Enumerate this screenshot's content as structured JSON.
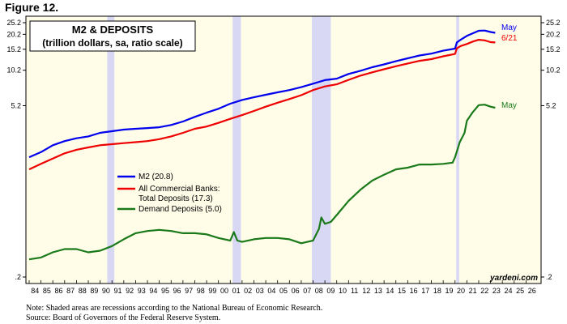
{
  "figure_label": "Figure 12.",
  "chart_data": {
    "type": "line",
    "title": "M2 & DEPOSITS",
    "subtitle": "(trillion dollars, sa, ratio scale)",
    "y_scale": "log",
    "ylim": [
      0.2,
      25.2
    ],
    "y_ticks": [
      {
        "value": 25.2,
        "label": "25.2"
      },
      {
        "value": 20.2,
        "label": "20.2"
      },
      {
        "value": 15.2,
        "label": "15.2"
      },
      {
        "value": 10.2,
        "label": "10.2"
      },
      {
        "value": 5.2,
        "label": "5.2"
      },
      {
        "value": 0.2,
        "label": ".2"
      }
    ],
    "xlim": [
      1984,
      2027
    ],
    "x_tick_labels": [
      "84",
      "85",
      "86",
      "87",
      "88",
      "89",
      "90",
      "91",
      "92",
      "93",
      "94",
      "95",
      "96",
      "97",
      "98",
      "99",
      "00",
      "01",
      "02",
      "03",
      "04",
      "05",
      "06",
      "07",
      "08",
      "09",
      "10",
      "11",
      "12",
      "13",
      "14",
      "15",
      "16",
      "17",
      "18",
      "19",
      "20",
      "21",
      "22",
      "23",
      "24",
      "25",
      "26"
    ],
    "recessions": [
      [
        1990.6,
        1991.2
      ],
      [
        2001.2,
        2001.9
      ],
      [
        2007.9,
        2009.5
      ],
      [
        2020.1,
        2020.35
      ]
    ],
    "series": [
      {
        "name": "M2 (20.8)",
        "color": "#0000ee",
        "end_label": "May",
        "points": [
          [
            1984,
            1.95
          ],
          [
            1985,
            2.15
          ],
          [
            1986,
            2.45
          ],
          [
            1987,
            2.65
          ],
          [
            1988,
            2.8
          ],
          [
            1989,
            2.9
          ],
          [
            1990,
            3.1
          ],
          [
            1991,
            3.2
          ],
          [
            1992,
            3.3
          ],
          [
            1993,
            3.35
          ],
          [
            1994,
            3.4
          ],
          [
            1995,
            3.45
          ],
          [
            1996,
            3.6
          ],
          [
            1997,
            3.85
          ],
          [
            1998,
            4.2
          ],
          [
            1999,
            4.55
          ],
          [
            2000,
            4.9
          ],
          [
            2001,
            5.4
          ],
          [
            2002,
            5.8
          ],
          [
            2003,
            6.1
          ],
          [
            2004,
            6.4
          ],
          [
            2005,
            6.7
          ],
          [
            2006,
            7.0
          ],
          [
            2007,
            7.4
          ],
          [
            2008,
            7.9
          ],
          [
            2009,
            8.45
          ],
          [
            2010,
            8.7
          ],
          [
            2011,
            9.5
          ],
          [
            2012,
            10.1
          ],
          [
            2013,
            10.8
          ],
          [
            2014,
            11.4
          ],
          [
            2015,
            12.1
          ],
          [
            2016,
            12.8
          ],
          [
            2017,
            13.5
          ],
          [
            2018,
            14.0
          ],
          [
            2019,
            14.8
          ],
          [
            2020.0,
            15.4
          ],
          [
            2020.15,
            17.3
          ],
          [
            2020.5,
            18.3
          ],
          [
            2021,
            19.6
          ],
          [
            2021.5,
            20.6
          ],
          [
            2022,
            21.6
          ],
          [
            2022.5,
            21.7
          ],
          [
            2023,
            21.1
          ],
          [
            2023.4,
            20.8
          ]
        ]
      },
      {
        "name": "All Commercial Banks: Total Deposits (17.3)",
        "color": "#ee0000",
        "end_label": "6/21",
        "points": [
          [
            1984,
            1.55
          ],
          [
            1985,
            1.72
          ],
          [
            1986,
            1.9
          ],
          [
            1987,
            2.1
          ],
          [
            1988,
            2.25
          ],
          [
            1989,
            2.35
          ],
          [
            1990,
            2.45
          ],
          [
            1991,
            2.5
          ],
          [
            1992,
            2.55
          ],
          [
            1993,
            2.6
          ],
          [
            1994,
            2.65
          ],
          [
            1995,
            2.75
          ],
          [
            1996,
            2.9
          ],
          [
            1997,
            3.1
          ],
          [
            1998,
            3.35
          ],
          [
            1999,
            3.5
          ],
          [
            2000,
            3.75
          ],
          [
            2001,
            4.05
          ],
          [
            2002,
            4.35
          ],
          [
            2003,
            4.7
          ],
          [
            2004,
            5.1
          ],
          [
            2005,
            5.5
          ],
          [
            2006,
            5.9
          ],
          [
            2007,
            6.35
          ],
          [
            2008,
            7.0
          ],
          [
            2009,
            7.5
          ],
          [
            2010,
            7.8
          ],
          [
            2011,
            8.5
          ],
          [
            2012,
            9.2
          ],
          [
            2013,
            9.8
          ],
          [
            2014,
            10.4
          ],
          [
            2015,
            11.0
          ],
          [
            2016,
            11.6
          ],
          [
            2017,
            12.2
          ],
          [
            2018,
            12.6
          ],
          [
            2019,
            13.3
          ],
          [
            2020.0,
            13.9
          ],
          [
            2020.15,
            15.5
          ],
          [
            2020.5,
            16.2
          ],
          [
            2021,
            16.8
          ],
          [
            2021.5,
            17.6
          ],
          [
            2022,
            18.2
          ],
          [
            2022.5,
            18.0
          ],
          [
            2023,
            17.4
          ],
          [
            2023.4,
            17.3
          ]
        ]
      },
      {
        "name": "Demand Deposits (5.0)",
        "color": "#1a7a1a",
        "end_label": "May",
        "points": [
          [
            1984,
            0.28
          ],
          [
            1985,
            0.29
          ],
          [
            1986,
            0.32
          ],
          [
            1987,
            0.34
          ],
          [
            1988,
            0.34
          ],
          [
            1989,
            0.32
          ],
          [
            1990,
            0.33
          ],
          [
            1991,
            0.36
          ],
          [
            1992,
            0.41
          ],
          [
            1993,
            0.46
          ],
          [
            1994,
            0.48
          ],
          [
            1995,
            0.49
          ],
          [
            1996,
            0.48
          ],
          [
            1997,
            0.46
          ],
          [
            1998,
            0.46
          ],
          [
            1999,
            0.45
          ],
          [
            2000,
            0.42
          ],
          [
            2001,
            0.4
          ],
          [
            2001.3,
            0.47
          ],
          [
            2001.6,
            0.4
          ],
          [
            2002,
            0.39
          ],
          [
            2003,
            0.41
          ],
          [
            2004,
            0.42
          ],
          [
            2005,
            0.42
          ],
          [
            2006,
            0.41
          ],
          [
            2007,
            0.38
          ],
          [
            2008,
            0.4
          ],
          [
            2008.5,
            0.5
          ],
          [
            2008.7,
            0.62
          ],
          [
            2009,
            0.55
          ],
          [
            2009.5,
            0.57
          ],
          [
            2010,
            0.65
          ],
          [
            2011,
            0.85
          ],
          [
            2012,
            1.05
          ],
          [
            2013,
            1.25
          ],
          [
            2014,
            1.4
          ],
          [
            2015,
            1.55
          ],
          [
            2016,
            1.6
          ],
          [
            2017,
            1.7
          ],
          [
            2018,
            1.7
          ],
          [
            2019,
            1.72
          ],
          [
            2019.8,
            1.76
          ],
          [
            2020.0,
            1.95
          ],
          [
            2020.4,
            2.6
          ],
          [
            2020.8,
            3.1
          ],
          [
            2021,
            3.9
          ],
          [
            2021.5,
            4.6
          ],
          [
            2022,
            5.25
          ],
          [
            2022.5,
            5.3
          ],
          [
            2023,
            5.1
          ],
          [
            2023.4,
            5.0
          ]
        ]
      }
    ],
    "legend": [
      "M2 (20.8)",
      "All Commercial Banks:",
      "Total Deposits (17.3)",
      "Demand Deposits (5.0)"
    ],
    "end_labels": [
      "May",
      "6/21",
      "May"
    ],
    "watermark": "yardeni.com"
  },
  "notes": [
    "Note: Shaded areas are recessions according to the National Bureau of Economic Research.",
    "Source: Board of Governors of the Federal Reserve System."
  ]
}
